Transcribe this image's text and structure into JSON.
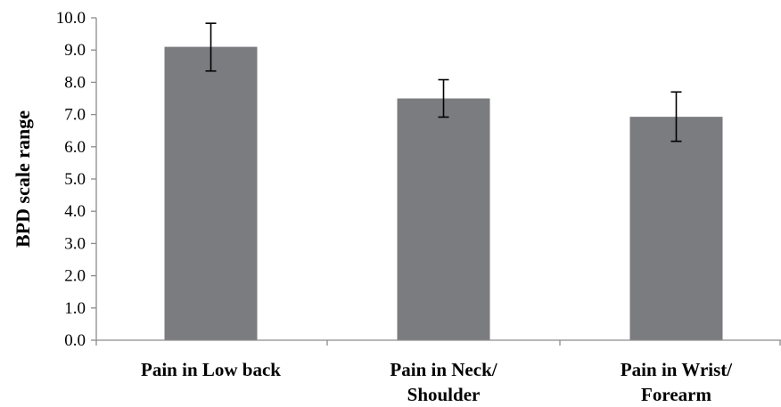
{
  "chart_data": {
    "type": "bar",
    "title": "",
    "xlabel": "",
    "ylabel": "BPD scale range",
    "categories": [
      [
        "Pain in Low back"
      ],
      [
        "Pain in Neck/",
        "Shoulder"
      ],
      [
        "Pain in Wrist/",
        "Forearm"
      ]
    ],
    "values": [
      9.1,
      7.5,
      6.93
    ],
    "error_low": [
      8.35,
      6.92,
      6.17
    ],
    "error_high": [
      9.83,
      8.08,
      7.7
    ],
    "ylim": [
      0,
      10
    ],
    "yticks": [
      0,
      1,
      2,
      3,
      4,
      5,
      6,
      7,
      8,
      9,
      10
    ],
    "ytick_labels": [
      "0.0",
      "1.0",
      "2.0",
      "3.0",
      "4.0",
      "5.0",
      "6.0",
      "7.0",
      "8.0",
      "9.0",
      "10.0"
    ],
    "grid": false,
    "legend": "none",
    "colors": {
      "bar": "#7b7c80",
      "axis": "#8c8c8c",
      "error_bar": "#000000",
      "text": "#000000"
    }
  }
}
